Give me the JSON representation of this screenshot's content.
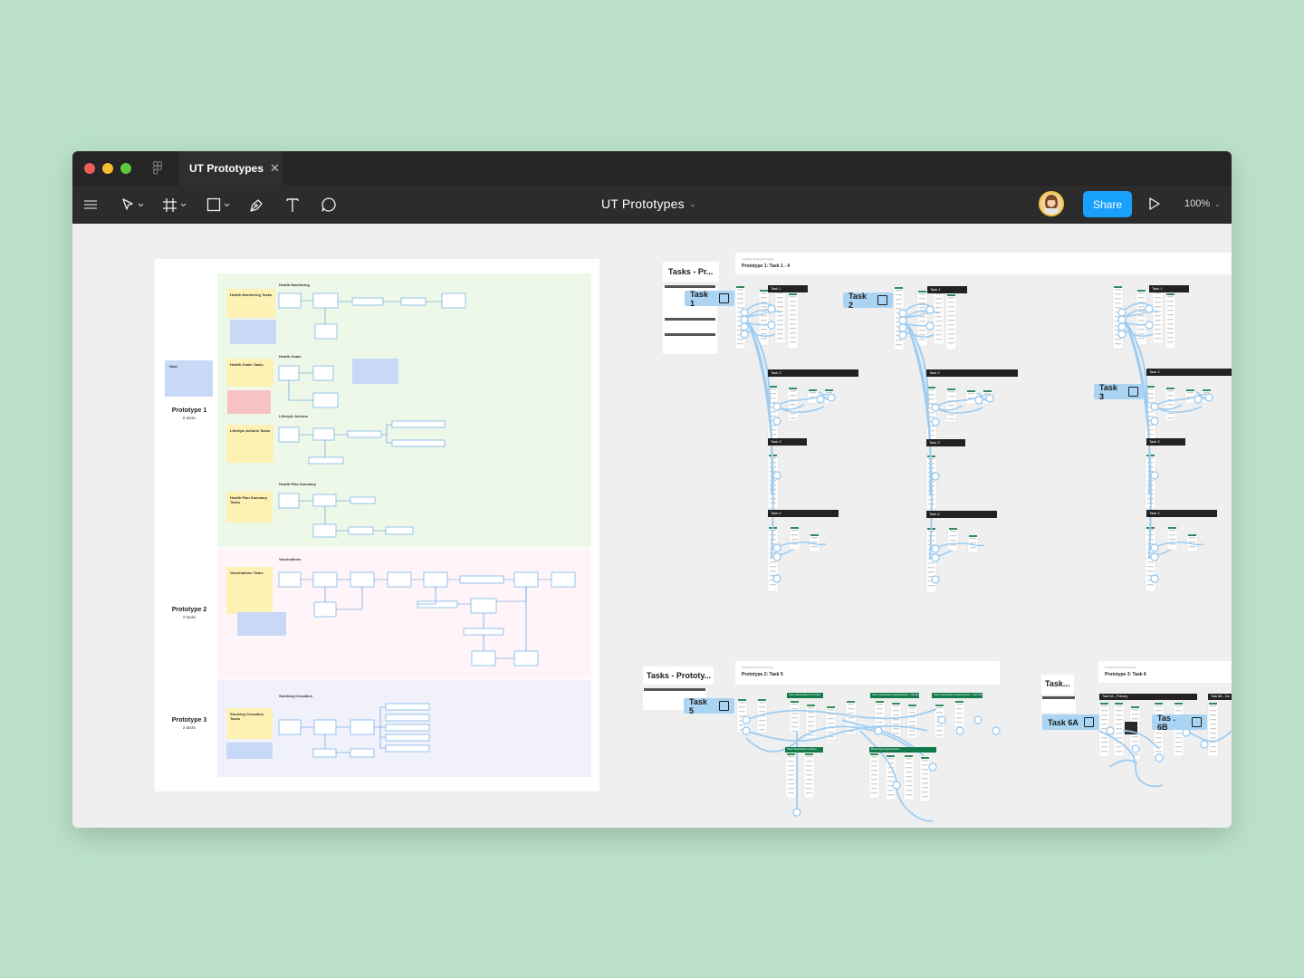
{
  "window": {
    "tab_title": "UT Prototypes",
    "tab_close": "✕",
    "doc_title": "UT Prototypes",
    "doc_title_caret": "⌄",
    "share_label": "Share",
    "zoom_label": "100%",
    "zoom_caret": "⌄"
  },
  "colors": {
    "background": "#bbe2c8",
    "titlebar": "#262626",
    "toolbar": "#2c2c2c",
    "canvas": "#efefef",
    "accent": "#18a0fb",
    "task_chip": "#a9d4f3",
    "flow": "#9fcdf1"
  },
  "toolbar": {
    "tools": [
      "menu-icon",
      "move-tool-icon",
      "frame-tool-icon",
      "shape-tool-icon",
      "pen-tool-icon",
      "text-tool-icon",
      "comment-tool-icon"
    ]
  },
  "board": {
    "prototypes": [
      {
        "name": "Prototype 1",
        "sub": "5 tasks"
      },
      {
        "name": "Prototype 2",
        "sub": "2 tasks"
      },
      {
        "name": "Prototype 3",
        "sub": "2 tasks"
      }
    ],
    "sections": [
      "Health Monitoring",
      "Health Goals",
      "Lifestyle Actions",
      "Health Plan Summary",
      "Vaccinations",
      "Smoking Cessation"
    ],
    "notes": [
      "Health Monitoring Tasks",
      "Note",
      "Health Goals Tasks",
      "Note",
      "Lifestyle Actions Tasks",
      "Health Plan Summary Tasks",
      "Vaccinations Tasks",
      "Note",
      "Smoking Cessation Tasks",
      "Note",
      "Note"
    ]
  },
  "flows": {
    "group1_label": "Tasks - Pr...",
    "group1_header_sub": "Usability Testing Prototype",
    "group1_header_title": "Prototype 1: Task 1 - 4",
    "group2_label": "Tasks - Prototy...",
    "group2_header_sub": "Usability Testing Prototype",
    "group2_header_title": "Prototype 2: Task 5",
    "group3_label": "Task...",
    "group3_header_sub": "Usability Testing Prototype",
    "group3_header_title": "Prototype 3: Task 6",
    "chips": [
      "Task 1",
      "Task 2",
      "Task 3",
      "Task 5",
      "Task 6A",
      "Tas . 6B"
    ],
    "p1_columns": [
      "Task 1",
      "Task 1",
      "Task 1"
    ],
    "p1_rows": [
      "Task 2",
      "Task 3",
      "Task 4"
    ],
    "p2_green": [
      "View Vaccinations To Take",
      "View Vaccination Appointment – Booked",
      "View Vaccination Appointment – Not Scheduled",
      "View Vaccination History",
      "Book New Appointment"
    ],
    "p3_dark": [
      "Task 6A – Primary",
      "Task 6B – Ba"
    ]
  }
}
